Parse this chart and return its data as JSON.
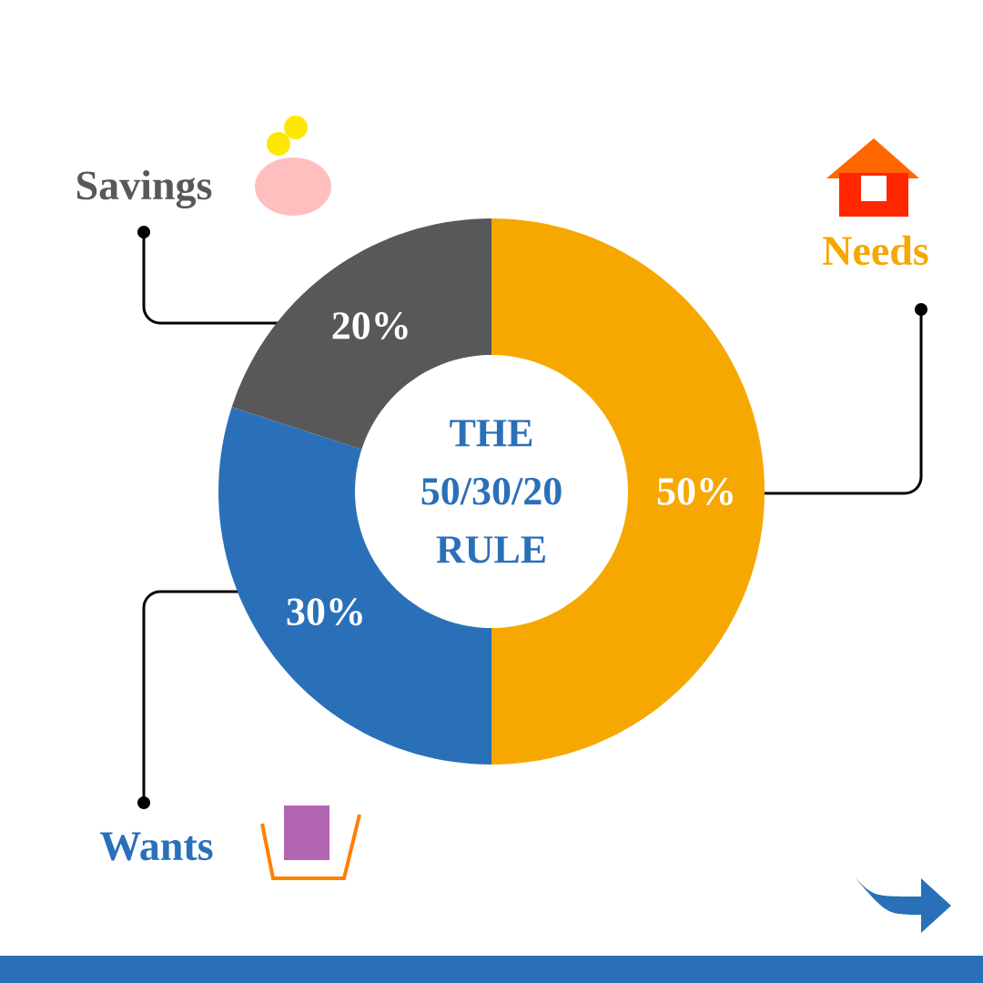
{
  "chart_data": {
    "type": "donut",
    "title": "THE 50/30/20 RULE",
    "categories": [
      "Needs",
      "Wants",
      "Savings"
    ],
    "values": [
      50,
      30,
      20
    ],
    "colors": [
      "#f6a800",
      "#2a70b8",
      "#58585a"
    ],
    "value_labels": [
      "50%",
      "30%",
      "20%"
    ]
  }
}
